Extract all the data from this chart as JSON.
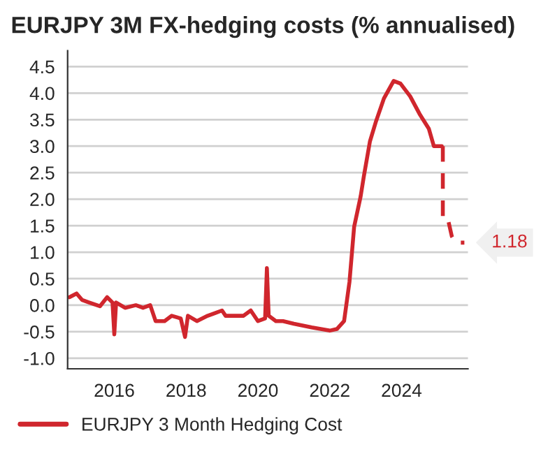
{
  "chart_data": {
    "type": "line",
    "title": "EURJPY 3M FX-hedging costs (% annualised)",
    "xlim": [
      2014.7,
      2025.85
    ],
    "xticks": [
      2016,
      2018,
      2020,
      2022,
      2024
    ],
    "ylim": [
      -1.2,
      4.8
    ],
    "yticks": [
      {
        "value": -1.0,
        "label": "-1.0"
      },
      {
        "value": -0.5,
        "label": "-0.5"
      },
      {
        "value": 0.0,
        "label": "0.0"
      },
      {
        "value": 0.5,
        "label": "0.5"
      },
      {
        "value": 1.0,
        "label": "1.0"
      },
      {
        "value": 1.5,
        "label": "1.5"
      },
      {
        "value": 2.0,
        "label": "2.0"
      },
      {
        "value": 2.5,
        "label": "2.5"
      },
      {
        "value": 3.0,
        "label": "3.0"
      },
      {
        "value": 3.5,
        "label": "3.5"
      },
      {
        "value": 4.0,
        "label": "4.0"
      },
      {
        "value": 4.5,
        "label": "4.5"
      }
    ],
    "grid": "y",
    "legend": "bottom",
    "marker": "none",
    "series": [
      {
        "name": "EURJPY 3 Month Hedging Cost",
        "color": "#d0262d",
        "line_style": "solid",
        "x": [
          2014.75,
          2014.95,
          2015.1,
          2015.3,
          2015.6,
          2015.8,
          2015.95,
          2016.0,
          2016.05,
          2016.3,
          2016.6,
          2016.8,
          2017.0,
          2017.15,
          2017.4,
          2017.6,
          2017.85,
          2017.97,
          2018.05,
          2018.3,
          2018.6,
          2018.8,
          2019.0,
          2019.1,
          2019.4,
          2019.6,
          2019.8,
          2020.0,
          2020.2,
          2020.25,
          2020.3,
          2020.5,
          2020.7,
          2021.0,
          2021.5,
          2022.0,
          2022.2,
          2022.4,
          2022.55,
          2022.68,
          2022.86,
          2022.95,
          2023.12,
          2023.29,
          2023.51,
          2023.78,
          2023.97,
          2024.24,
          2024.5,
          2024.76,
          2024.9,
          2025.12
        ],
        "values": [
          0.15,
          0.22,
          0.1,
          0.05,
          -0.02,
          0.15,
          0.05,
          -0.55,
          0.05,
          -0.05,
          0.0,
          -0.05,
          0.0,
          -0.3,
          -0.3,
          -0.2,
          -0.25,
          -0.6,
          -0.2,
          -0.3,
          -0.2,
          -0.15,
          -0.1,
          -0.2,
          -0.2,
          -0.2,
          -0.1,
          -0.3,
          -0.25,
          0.7,
          -0.2,
          -0.3,
          -0.3,
          -0.35,
          -0.42,
          -0.48,
          -0.45,
          -0.3,
          0.44,
          1.48,
          2.05,
          2.43,
          3.09,
          3.47,
          3.9,
          4.23,
          4.18,
          3.94,
          3.61,
          3.33,
          3.0,
          3.0
        ]
      },
      {
        "color": "#d0262d",
        "line_style": "dashed",
        "x": [
          2025.15,
          2025.15,
          2025.3,
          2025.4,
          2025.5,
          2025.75
        ],
        "values": [
          3.0,
          1.6,
          1.6,
          1.3,
          1.18,
          1.18
        ]
      }
    ],
    "annotations": [
      {
        "text": "1.18",
        "x": 2025.75,
        "y": 1.18
      }
    ]
  }
}
